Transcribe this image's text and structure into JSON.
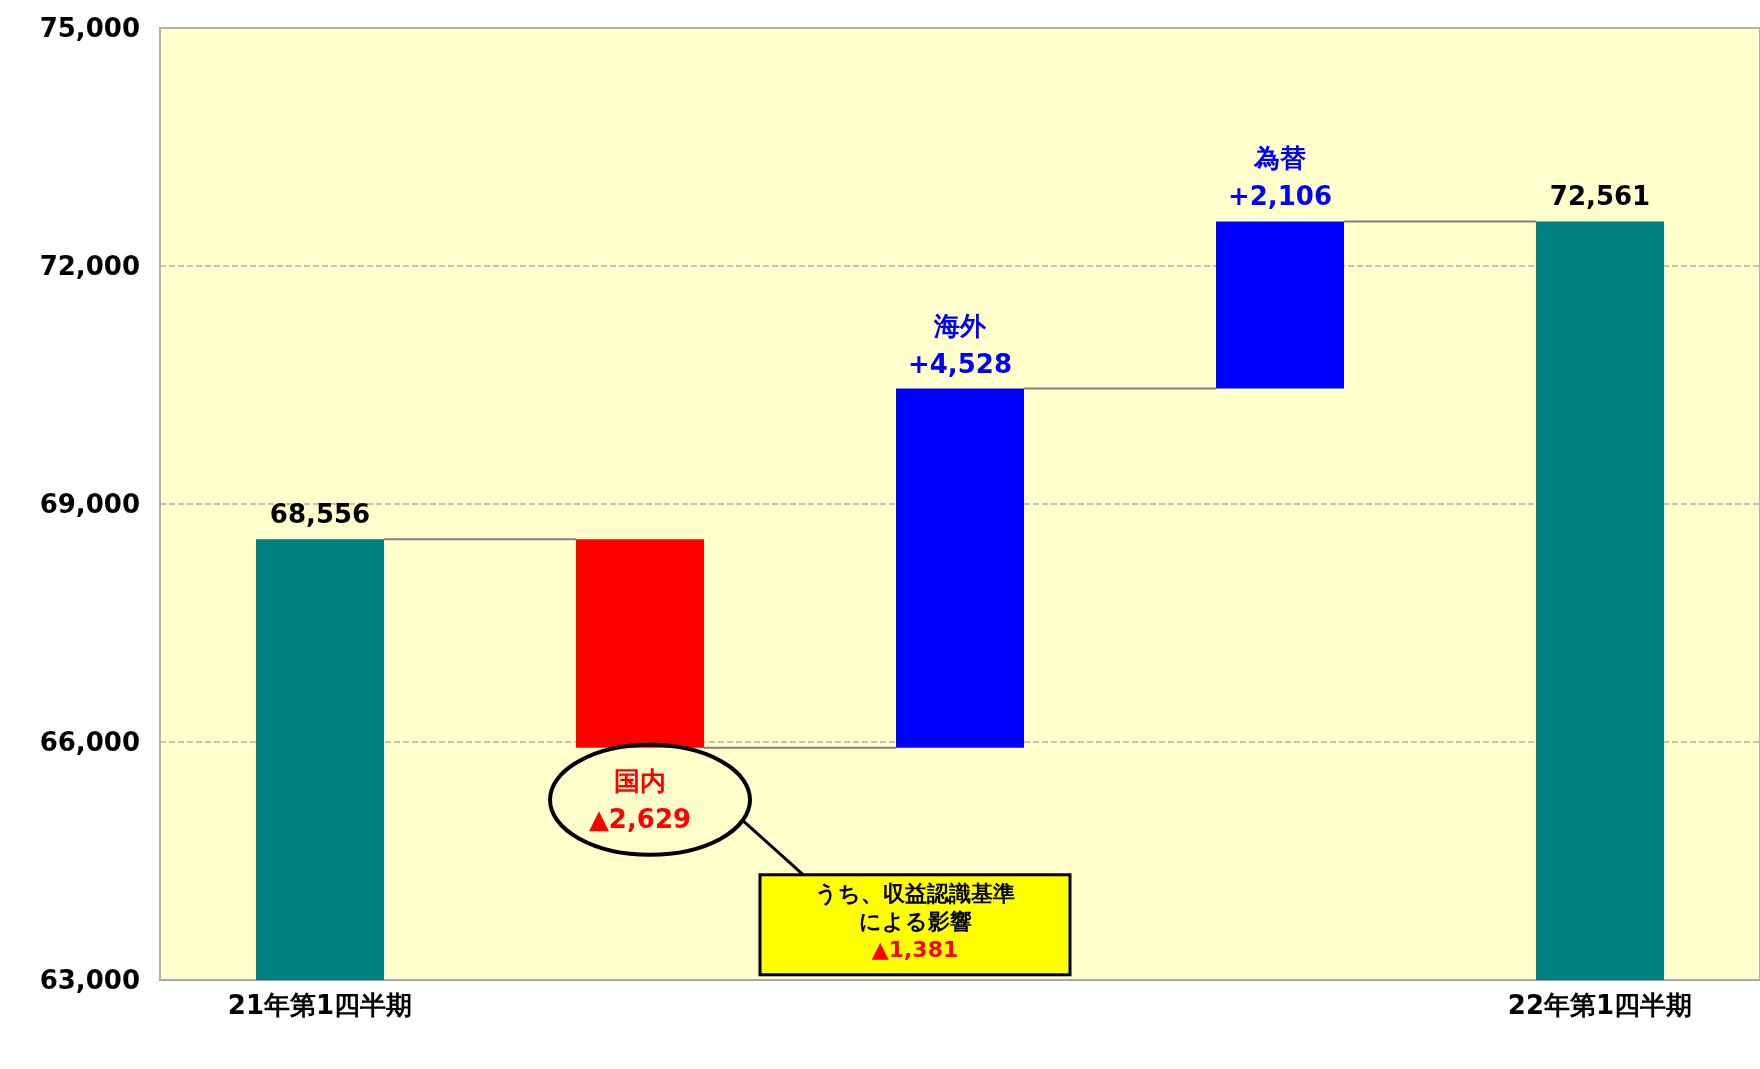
{
  "chart_data": {
    "type": "bar",
    "categories": [
      "21年第1四半期",
      null,
      null,
      null,
      "22年第1四半期"
    ],
    "values": [
      68556,
      -2629,
      4528,
      2106,
      72561
    ],
    "base": [
      null,
      68556,
      65927,
      70455,
      null
    ],
    "colors": [
      "#008080",
      "#ff0000",
      "#0000ff",
      "#0000ff",
      "#008080"
    ],
    "value_labels": [
      "68,556",
      "国内\n▲2,629",
      "海外\n+4,528",
      "為替\n+2,106",
      "72,561"
    ],
    "ylim": [
      63000,
      75000
    ],
    "yticks": [
      {
        "value": 63000,
        "label": "63,000"
      },
      {
        "value": 66000,
        "label": "66,000"
      },
      {
        "value": 69000,
        "label": "69,000"
      },
      {
        "value": 72000,
        "label": "72,000"
      },
      {
        "value": 75000,
        "label": "75,000"
      }
    ],
    "grid": "y",
    "annotations": [
      "うち、収益認識基準による影響",
      "▲1,381"
    ]
  }
}
